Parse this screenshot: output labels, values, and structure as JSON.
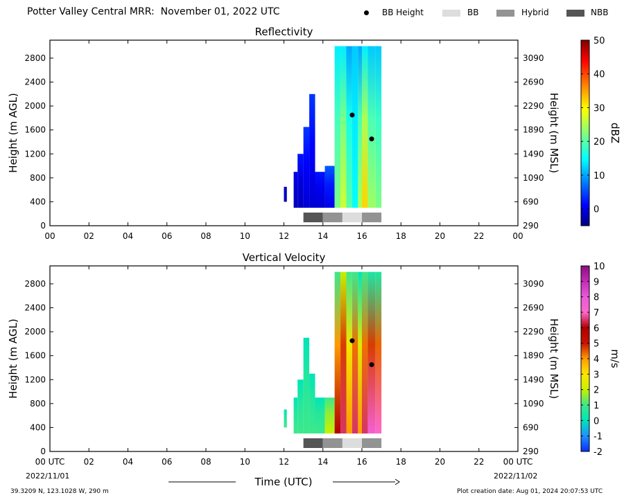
{
  "header": {
    "title": "Potter Valley Central MRR:  November 01, 2022 UTC",
    "legend": [
      {
        "label": "BB Height",
        "kind": "dot",
        "color": "#000000"
      },
      {
        "label": "BB",
        "kind": "swatch",
        "color": "#dddddd"
      },
      {
        "label": "Hybrid",
        "kind": "swatch",
        "color": "#939393"
      },
      {
        "label": "NBB",
        "kind": "swatch",
        "color": "#555555"
      }
    ]
  },
  "footer": {
    "coords": "39.3209 N, 123.1028 W, 290 m",
    "created": "Plot creation date: Aug 01, 2024 20:07:53 UTC",
    "date_start": "2022/11/01",
    "date_end": "2022/11/02",
    "time_label": "Time (UTC)"
  },
  "chart_data": [
    {
      "type": "heatmap",
      "title": "Reflectivity",
      "ylabel": "Height (m AGL)",
      "ylabel_right": "Height (m MSL)",
      "cbar_label": "dBZ",
      "xlim": [
        0,
        24
      ],
      "ylim": [
        0,
        3100
      ],
      "x_ticks": [
        "00",
        "02",
        "04",
        "06",
        "08",
        "10",
        "12",
        "14",
        "16",
        "18",
        "20",
        "22",
        "00"
      ],
      "y_ticks": [
        0,
        400,
        800,
        1200,
        1600,
        2000,
        2400,
        2800
      ],
      "y_ticks_right": [
        "290",
        "690",
        "1090",
        "1490",
        "1890",
        "2290",
        "2690",
        "3090"
      ],
      "cbar_range": [
        -5,
        50
      ],
      "cbar_ticks": [
        0,
        10,
        20,
        30,
        40,
        50
      ],
      "bb_height": [
        {
          "x": 15.5,
          "y": 1850
        },
        {
          "x": 16.5,
          "y": 1450
        }
      ],
      "bb_bar": [
        {
          "start": 13.0,
          "end": 14.0,
          "type": "NBB"
        },
        {
          "start": 14.0,
          "end": 15.0,
          "type": "Hybrid"
        },
        {
          "start": 15.0,
          "end": 16.0,
          "type": "BB"
        },
        {
          "start": 16.0,
          "end": 17.0,
          "type": "Hybrid"
        }
      ],
      "echo_segments": [
        {
          "x0": 12.0,
          "x1": 12.15,
          "y0": 400,
          "y1": 650,
          "v0": -2,
          "v1": -2
        },
        {
          "x0": 12.5,
          "x1": 12.7,
          "y0": 300,
          "y1": 900,
          "v0": -2,
          "v1": 0
        },
        {
          "x0": 12.7,
          "x1": 13.0,
          "y0": 300,
          "y1": 1200,
          "v0": -2,
          "v1": 2
        },
        {
          "x0": 13.0,
          "x1": 13.3,
          "y0": 300,
          "y1": 1650,
          "v0": -1,
          "v1": 4
        },
        {
          "x0": 13.3,
          "x1": 13.6,
          "y0": 300,
          "y1": 2200,
          "v0": -1,
          "v1": 4
        },
        {
          "x0": 13.6,
          "x1": 14.1,
          "y0": 300,
          "y1": 900,
          "v0": -1,
          "v1": 2
        },
        {
          "x0": 14.1,
          "x1": 14.6,
          "y0": 300,
          "y1": 1000,
          "v0": 0,
          "v1": 6
        },
        {
          "x0": 14.6,
          "x1": 14.9,
          "y0": 300,
          "y1": 3000,
          "v0": 22,
          "v1": 14
        },
        {
          "x0": 14.9,
          "x1": 15.2,
          "y0": 300,
          "y1": 3000,
          "v0": 27,
          "v1": 14
        },
        {
          "x0": 15.2,
          "x1": 15.5,
          "y0": 300,
          "y1": 3000,
          "v0": 20,
          "v1": 10
        },
        {
          "x0": 15.5,
          "x1": 15.8,
          "y0": 300,
          "y1": 3000,
          "v0": 15,
          "v1": 12
        },
        {
          "x0": 15.8,
          "x1": 16.0,
          "y0": 300,
          "y1": 3000,
          "v0": 25,
          "v1": 10
        },
        {
          "x0": 16.0,
          "x1": 16.3,
          "y0": 300,
          "y1": 3000,
          "v0": 32,
          "v1": 14
        },
        {
          "x0": 16.3,
          "x1": 16.7,
          "y0": 300,
          "y1": 3000,
          "v0": 24,
          "v1": 12
        },
        {
          "x0": 16.7,
          "x1": 17.0,
          "y0": 300,
          "y1": 3000,
          "v0": 22,
          "v1": 12
        }
      ]
    },
    {
      "type": "heatmap",
      "title": "Vertical Velocity",
      "ylabel": "Height (m AGL)",
      "ylabel_right": "Height (m MSL)",
      "cbar_label": "m/s",
      "xlim": [
        0,
        24
      ],
      "ylim": [
        0,
        3100
      ],
      "x_ticks": [
        "00 UTC",
        "02",
        "04",
        "06",
        "08",
        "10",
        "12",
        "14",
        "16",
        "18",
        "20",
        "22",
        "00 UTC"
      ],
      "y_ticks": [
        0,
        400,
        800,
        1200,
        1600,
        2000,
        2400,
        2800
      ],
      "y_ticks_right": [
        "290",
        "690",
        "1090",
        "1490",
        "1890",
        "2290",
        "2690",
        "3090"
      ],
      "cbar_range": [
        -2,
        10
      ],
      "cbar_ticks": [
        -2,
        -1,
        0,
        1,
        2,
        3,
        4,
        5,
        6,
        7,
        8,
        9,
        10
      ],
      "bb_height": [
        {
          "x": 15.5,
          "y": 1850
        },
        {
          "x": 16.5,
          "y": 1450
        }
      ],
      "bb_bar": [
        {
          "start": 13.0,
          "end": 14.0,
          "type": "NBB"
        },
        {
          "start": 14.0,
          "end": 15.0,
          "type": "Hybrid"
        },
        {
          "start": 15.0,
          "end": 16.0,
          "type": "BB"
        },
        {
          "start": 16.0,
          "end": 17.0,
          "type": "Hybrid"
        }
      ],
      "echo_segments": [
        {
          "x0": 12.0,
          "x1": 12.15,
          "y0": 400,
          "y1": 700,
          "v0": 1,
          "v1": 0
        },
        {
          "x0": 12.5,
          "x1": 12.7,
          "y0": 300,
          "y1": 900,
          "v0": 1,
          "v1": 0
        },
        {
          "x0": 12.7,
          "x1": 13.0,
          "y0": 300,
          "y1": 1200,
          "v0": 1,
          "v1": 0
        },
        {
          "x0": 13.0,
          "x1": 13.3,
          "y0": 300,
          "y1": 1900,
          "v0": 1,
          "v1": 0
        },
        {
          "x0": 13.3,
          "x1": 13.6,
          "y0": 300,
          "y1": 1300,
          "v0": 1,
          "v1": 0
        },
        {
          "x0": 13.6,
          "x1": 14.1,
          "y0": 300,
          "y1": 900,
          "v0": 1,
          "v1": 0
        },
        {
          "x0": 14.1,
          "x1": 14.6,
          "y0": 300,
          "y1": 900,
          "v0": 2,
          "v1": 1
        },
        {
          "x0": 14.6,
          "x1": 14.9,
          "y0": 300,
          "y1": 3000,
          "v0": 6,
          "v1": 1
        },
        {
          "x0": 14.9,
          "x1": 15.2,
          "y0": 300,
          "y1": 3000,
          "v0": 6.5,
          "v1": 2
        },
        {
          "x0": 15.2,
          "x1": 15.5,
          "y0": 300,
          "y1": 3000,
          "v0": 4,
          "v1": 1
        },
        {
          "x0": 15.5,
          "x1": 15.8,
          "y0": 300,
          "y1": 3000,
          "v0": 6.5,
          "v1": 1
        },
        {
          "x0": 15.8,
          "x1": 16.0,
          "y0": 300,
          "y1": 3000,
          "v0": 4,
          "v1": 0
        },
        {
          "x0": 16.0,
          "x1": 16.3,
          "y0": 300,
          "y1": 3000,
          "v0": 6.5,
          "v1": 1
        },
        {
          "x0": 16.3,
          "x1": 16.7,
          "y0": 300,
          "y1": 3000,
          "v0": 7.5,
          "v1": 0.5
        },
        {
          "x0": 16.7,
          "x1": 17.0,
          "y0": 300,
          "y1": 3000,
          "v0": 7,
          "v1": 0.5
        }
      ]
    }
  ]
}
